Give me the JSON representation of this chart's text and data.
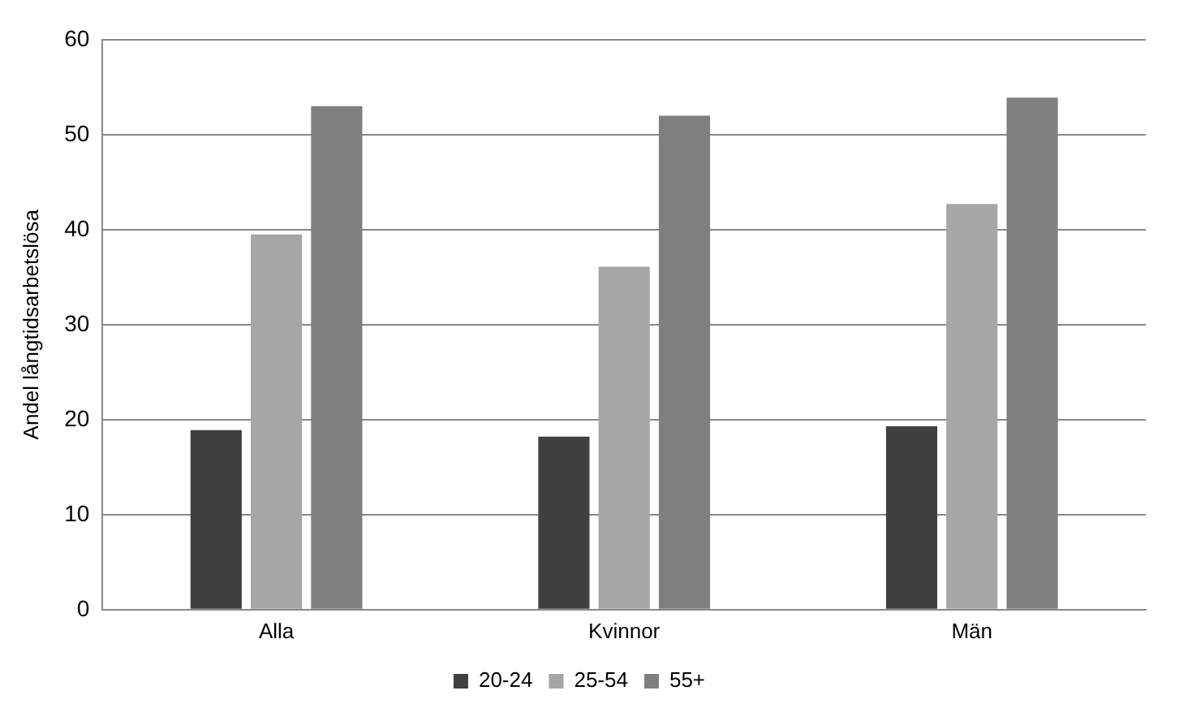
{
  "chart_data": {
    "type": "bar",
    "ylabel": "Andel långtidsarbetslösa",
    "categories": [
      "Alla",
      "Kvinnor",
      "Män"
    ],
    "series": [
      {
        "name": "20-24",
        "color": "#404040",
        "values": [
          18.9,
          18.2,
          19.3
        ]
      },
      {
        "name": "25-54",
        "color": "#a6a6a6",
        "values": [
          39.5,
          36.1,
          42.7
        ]
      },
      {
        "name": "55+",
        "color": "#7f7f7f",
        "values": [
          53.0,
          52.0,
          53.9
        ]
      }
    ],
    "ylim": [
      0,
      60
    ],
    "yticks": [
      0,
      10,
      20,
      30,
      40,
      50,
      60
    ],
    "grid": "y",
    "legend": "bottom"
  }
}
